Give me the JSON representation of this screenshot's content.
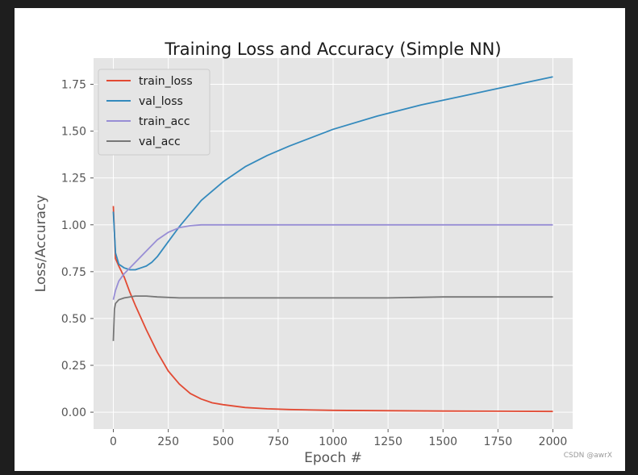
{
  "chart_data": {
    "type": "line",
    "title": "Training Loss and Accuracy (Simple NN)",
    "xlabel": "Epoch #",
    "ylabel": "Loss/Accuracy",
    "xlim": [
      -90,
      2090
    ],
    "ylim": [
      -0.09,
      1.89
    ],
    "xticks": [
      0,
      250,
      500,
      750,
      1000,
      1250,
      1500,
      1750,
      2000
    ],
    "yticks": [
      0.0,
      0.25,
      0.5,
      0.75,
      1.0,
      1.25,
      1.5,
      1.75
    ],
    "grid": true,
    "legend_position": "upper-left",
    "background": "#e5e5e5",
    "series": [
      {
        "name": "train_loss",
        "color": "#e24a33",
        "x": [
          0,
          10,
          25,
          50,
          75,
          100,
          150,
          200,
          250,
          300,
          350,
          400,
          450,
          500,
          600,
          700,
          800,
          1000,
          1200,
          1500,
          1750,
          2000
        ],
        "y": [
          1.1,
          0.82,
          0.78,
          0.72,
          0.64,
          0.57,
          0.44,
          0.32,
          0.22,
          0.15,
          0.1,
          0.07,
          0.05,
          0.04,
          0.025,
          0.018,
          0.014,
          0.01,
          0.008,
          0.006,
          0.005,
          0.004
        ]
      },
      {
        "name": "val_loss",
        "color": "#348abd",
        "x": [
          0,
          10,
          25,
          50,
          75,
          100,
          125,
          150,
          175,
          200,
          250,
          300,
          350,
          400,
          450,
          500,
          600,
          700,
          800,
          1000,
          1200,
          1400,
          1600,
          1800,
          2000
        ],
        "y": [
          1.07,
          0.85,
          0.79,
          0.77,
          0.76,
          0.76,
          0.77,
          0.78,
          0.8,
          0.83,
          0.91,
          0.99,
          1.06,
          1.13,
          1.18,
          1.23,
          1.31,
          1.37,
          1.42,
          1.51,
          1.58,
          1.64,
          1.69,
          1.74,
          1.79
        ]
      },
      {
        "name": "train_acc",
        "color": "#988ed5",
        "x": [
          0,
          10,
          25,
          50,
          75,
          100,
          150,
          200,
          250,
          300,
          350,
          400,
          500,
          1000,
          1500,
          2000
        ],
        "y": [
          0.6,
          0.65,
          0.7,
          0.74,
          0.77,
          0.8,
          0.86,
          0.92,
          0.96,
          0.985,
          0.995,
          1.0,
          1.0,
          1.0,
          1.0,
          1.0
        ]
      },
      {
        "name": "val_acc",
        "color": "#777777",
        "x": [
          0,
          5,
          10,
          25,
          50,
          75,
          100,
          150,
          200,
          300,
          400,
          500,
          750,
          1000,
          1250,
          1500,
          1750,
          2000
        ],
        "y": [
          0.38,
          0.55,
          0.58,
          0.6,
          0.61,
          0.615,
          0.62,
          0.62,
          0.615,
          0.61,
          0.61,
          0.61,
          0.61,
          0.61,
          0.61,
          0.615,
          0.615,
          0.615
        ]
      }
    ]
  },
  "watermark": "CSDN @awrX"
}
